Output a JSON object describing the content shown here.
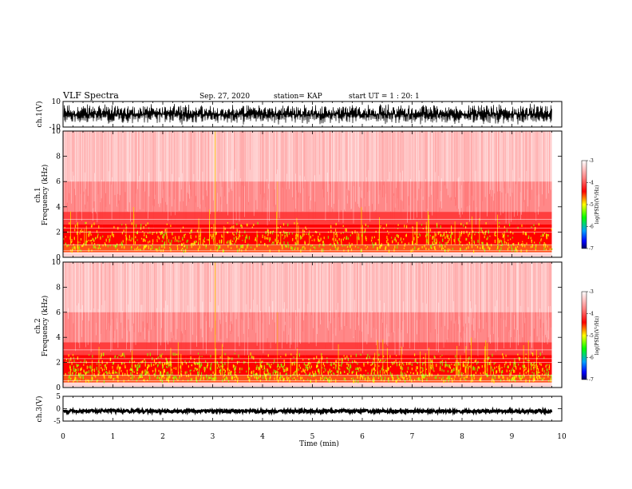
{
  "header": {
    "title": "VLF Spectra",
    "date": "Sep. 27, 2020",
    "station": "station= KAP",
    "start": "start  UT =  1 : 20: 1"
  },
  "colors": {
    "background": "#ffffff",
    "trace": "#000000",
    "spectrogram_low": "#ffffff",
    "spectrogram_mid": "#ff0000",
    "spectrogram_high": "#ffff00"
  },
  "chart_data": [
    {
      "type": "line",
      "name": "ch1-waveform",
      "ylabel": "ch.1(V)",
      "ylim": [
        -10,
        10
      ],
      "y_ticks": [
        "10",
        "-10"
      ],
      "description_level": "dense oscillation filling most of the range",
      "amplitude_fraction": 0.85
    },
    {
      "type": "heatmap",
      "name": "ch1-spectrogram",
      "ylabel": "ch.1\nFrequency (kHz)",
      "ylim": [
        0,
        10
      ],
      "y_ticks": [
        "0",
        "2",
        "4",
        "6",
        "8",
        "10"
      ],
      "colorbar": {
        "label": "log(PSD)(V²/Hz)",
        "ticks": [
          "-3",
          "-4",
          "-5",
          "-6",
          "-7"
        ],
        "range": [
          -7,
          -3
        ]
      }
    },
    {
      "type": "heatmap",
      "name": "ch2-spectrogram",
      "ylabel": "ch.2\nFrequency (kHz)",
      "ylim": [
        0,
        10
      ],
      "y_ticks": [
        "0",
        "2",
        "4",
        "6",
        "8",
        "10"
      ],
      "colorbar": {
        "label": "log(PSD)(V²/Hz)",
        "ticks": [
          "-3",
          "-4",
          "-5",
          "-6",
          "-7"
        ],
        "range": [
          -7,
          -3
        ]
      }
    },
    {
      "type": "line",
      "name": "ch3-waveform",
      "ylabel": "ch.3(V)",
      "ylim": [
        -5,
        5
      ],
      "y_ticks": [
        "5",
        "0",
        "-5"
      ],
      "level": -1,
      "amplitude_fraction": 0.06
    }
  ],
  "x_axis": {
    "label": "Time  (min)",
    "range": [
      0,
      10
    ],
    "data_end": 9.8,
    "ticks": [
      "0",
      "1",
      "2",
      "3",
      "4",
      "5",
      "6",
      "7",
      "8",
      "9",
      "10"
    ]
  }
}
